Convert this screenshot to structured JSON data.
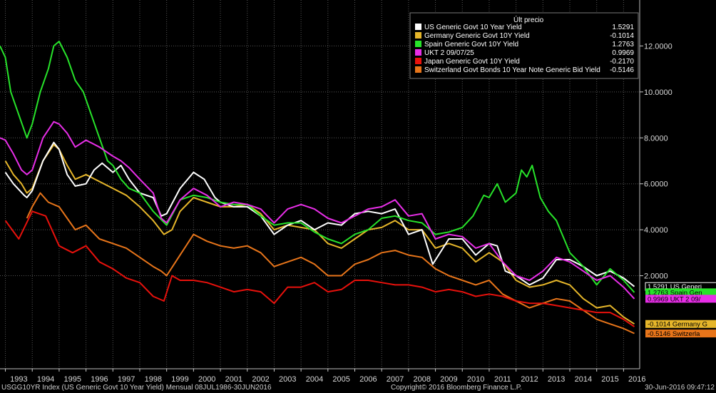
{
  "chart_data": {
    "type": "line",
    "title": "",
    "xlabel": "",
    "ylabel": "",
    "xlim": [
      1992.8,
      2016.6
    ],
    "ylim": [
      -2.05,
      14.0
    ],
    "grid": true,
    "legend_placement": "top-right",
    "legend_header": "Últ precio",
    "y_ticks": [
      {
        "value": 2,
        "label": "2.0000"
      },
      {
        "value": 4,
        "label": "4.0000"
      },
      {
        "value": 6,
        "label": "6.0000"
      },
      {
        "value": 8,
        "label": "8.0000"
      },
      {
        "value": 10,
        "label": "10.0000"
      },
      {
        "value": 12,
        "label": "12.0000"
      }
    ],
    "x_ticks": [
      "1993",
      "1994",
      "1995",
      "1996",
      "1997",
      "1998",
      "1999",
      "2000",
      "2001",
      "2002",
      "2003",
      "2004",
      "2005",
      "2006",
      "2007",
      "2008",
      "2009",
      "2010",
      "2011",
      "2012",
      "2013",
      "2014",
      "2015",
      "2016"
    ],
    "series": [
      {
        "name": "Switzerland Govt Bonds 10 Year Note Generic Bid Yield",
        "last_value": "-0.5146",
        "end_label": "-0.5146  Switzerla",
        "color": "#e8751a",
        "x": [
          1993.0,
          1993.4,
          1993.8,
          1994.0,
          1994.3,
          1994.6,
          1995.0,
          1995.3,
          1995.6,
          1996.0,
          1996.5,
          1997.0,
          1997.5,
          1998.0,
          1998.5,
          1998.8,
          1999.0,
          1999.5,
          2000.0,
          2000.5,
          2001.0,
          2001.5,
          2002.0,
          2002.5,
          2003.0,
          2003.5,
          2004.0,
          2004.5,
          2005.0,
          2005.5,
          2006.0,
          2006.5,
          2007.0,
          2007.5,
          2008.0,
          2008.5,
          2009.0,
          2009.5,
          2010.0,
          2010.5,
          2011.0,
          2011.5,
          2012.0,
          2012.5,
          2013.0,
          2013.5,
          2014.0,
          2014.5,
          2015.0,
          2015.5,
          2016.0,
          2016.4
        ],
        "y": [
          null,
          null,
          4.5,
          5.0,
          5.6,
          5.2,
          5.0,
          4.5,
          4.0,
          4.2,
          3.6,
          3.4,
          3.2,
          2.8,
          2.4,
          2.2,
          2.0,
          2.9,
          3.8,
          3.5,
          3.3,
          3.2,
          3.3,
          3.0,
          2.4,
          2.6,
          2.8,
          2.5,
          2.0,
          2.0,
          2.5,
          2.7,
          3.0,
          3.1,
          2.9,
          2.8,
          2.3,
          2.0,
          1.8,
          1.6,
          1.8,
          1.2,
          0.9,
          0.6,
          0.8,
          1.0,
          0.9,
          0.5,
          0.1,
          -0.1,
          -0.3,
          -0.5146
        ]
      },
      {
        "name": "Japan Generic Govt 10Y Yield",
        "last_value": "-0.2170",
        "end_label": "",
        "color": "#e8110c",
        "x": [
          1993.0,
          1993.5,
          1994.0,
          1994.5,
          1995.0,
          1995.5,
          1996.0,
          1996.5,
          1997.0,
          1997.5,
          1998.0,
          1998.5,
          1998.9,
          1999.2,
          1999.5,
          2000.0,
          2000.5,
          2001.0,
          2001.5,
          2002.0,
          2002.5,
          2003.0,
          2003.5,
          2004.0,
          2004.5,
          2005.0,
          2005.5,
          2006.0,
          2006.5,
          2007.0,
          2007.5,
          2008.0,
          2008.5,
          2009.0,
          2009.5,
          2010.0,
          2010.5,
          2011.0,
          2011.5,
          2012.0,
          2012.5,
          2013.0,
          2013.5,
          2014.0,
          2014.5,
          2015.0,
          2015.5,
          2016.0,
          2016.4
        ],
        "y": [
          4.4,
          3.6,
          4.8,
          4.6,
          3.3,
          3.0,
          3.3,
          2.6,
          2.3,
          1.9,
          1.7,
          1.1,
          0.9,
          2.0,
          1.8,
          1.8,
          1.7,
          1.5,
          1.3,
          1.4,
          1.3,
          0.8,
          1.5,
          1.5,
          1.7,
          1.3,
          1.4,
          1.8,
          1.8,
          1.7,
          1.6,
          1.6,
          1.5,
          1.3,
          1.4,
          1.3,
          1.1,
          1.2,
          1.1,
          0.9,
          0.8,
          0.8,
          0.7,
          0.6,
          0.5,
          0.4,
          0.4,
          0.1,
          -0.217
        ]
      },
      {
        "name": "Germany Generic Govt 10Y Yield",
        "last_value": "-0.1014",
        "end_label": "-0.1014  Germany G",
        "color": "#e6b62a",
        "x": [
          1993.0,
          1993.3,
          1993.6,
          1993.8,
          1994.0,
          1994.4,
          1994.8,
          1995.0,
          1995.3,
          1995.6,
          1996.0,
          1996.5,
          1997.0,
          1997.5,
          1998.0,
          1998.5,
          1998.9,
          1999.2,
          1999.5,
          2000.0,
          2000.5,
          2001.0,
          2001.5,
          2002.0,
          2002.5,
          2003.0,
          2003.5,
          2004.0,
          2004.5,
          2005.0,
          2005.5,
          2006.0,
          2006.5,
          2007.0,
          2007.5,
          2008.0,
          2008.5,
          2009.0,
          2009.5,
          2010.0,
          2010.5,
          2011.0,
          2011.5,
          2012.0,
          2012.5,
          2013.0,
          2013.5,
          2014.0,
          2014.5,
          2015.0,
          2015.5,
          2016.0,
          2016.4
        ],
        "y": [
          7.0,
          6.4,
          6.0,
          5.6,
          5.8,
          7.0,
          7.7,
          7.5,
          6.8,
          6.2,
          6.4,
          6.1,
          5.8,
          5.5,
          5.0,
          4.4,
          3.8,
          4.0,
          4.8,
          5.4,
          5.2,
          5.0,
          5.0,
          5.1,
          4.7,
          4.0,
          4.2,
          4.1,
          4.0,
          3.4,
          3.2,
          3.6,
          4.0,
          4.1,
          4.4,
          4.0,
          4.0,
          3.2,
          3.4,
          3.2,
          2.6,
          3.0,
          2.6,
          1.8,
          1.5,
          1.6,
          1.8,
          1.6,
          1.0,
          0.6,
          0.7,
          0.2,
          -0.1014
        ]
      },
      {
        "name": "US Generic Govt 10 Year Yield",
        "last_value": "1.5291",
        "end_label": "1.5291  US Generi",
        "color": "#ffffff",
        "x": [
          1993.0,
          1993.3,
          1993.7,
          1993.8,
          1994.0,
          1994.4,
          1994.8,
          1995.0,
          1995.3,
          1995.6,
          1996.0,
          1996.3,
          1996.6,
          1997.0,
          1997.3,
          1997.6,
          1998.0,
          1998.5,
          1998.8,
          1999.0,
          1999.5,
          2000.0,
          2000.4,
          2000.8,
          2001.0,
          2001.5,
          2002.0,
          2002.5,
          2003.0,
          2003.5,
          2004.0,
          2004.5,
          2005.0,
          2005.5,
          2006.0,
          2006.5,
          2007.0,
          2007.5,
          2008.0,
          2008.5,
          2008.9,
          2009.5,
          2010.0,
          2010.5,
          2011.0,
          2011.3,
          2011.6,
          2012.0,
          2012.5,
          2013.0,
          2013.5,
          2014.0,
          2014.5,
          2015.0,
          2015.5,
          2016.0,
          2016.4
        ],
        "y": [
          6.5,
          6.0,
          5.5,
          5.4,
          5.7,
          7.0,
          7.8,
          7.5,
          6.4,
          5.9,
          6.0,
          6.6,
          6.9,
          6.5,
          6.8,
          6.2,
          5.6,
          5.4,
          4.6,
          4.7,
          5.8,
          6.5,
          6.2,
          5.4,
          5.2,
          5.0,
          5.0,
          4.6,
          3.8,
          4.2,
          4.4,
          4.0,
          4.3,
          4.2,
          4.7,
          4.8,
          4.7,
          4.9,
          3.8,
          4.0,
          2.5,
          3.6,
          3.6,
          2.9,
          3.4,
          3.3,
          2.2,
          2.0,
          1.6,
          1.9,
          2.7,
          2.7,
          2.4,
          2.0,
          2.2,
          1.9,
          1.5291
        ]
      },
      {
        "name": "Spain Generic Govt 10Y Yield",
        "last_value": "1.2763",
        "end_label": "1.2763  Spain Gen",
        "color": "#27e32a",
        "x": [
          1992.8,
          1993.0,
          1993.2,
          1993.5,
          1993.8,
          1994.0,
          1994.3,
          1994.6,
          1994.8,
          1995.0,
          1995.3,
          1995.6,
          1995.9,
          1996.2,
          1996.5,
          1996.8,
          1997.0,
          1997.3,
          1997.6,
          1998.0,
          1998.5,
          1999.0,
          1999.5,
          2000.0,
          2000.5,
          2001.0,
          2001.5,
          2002.0,
          2002.5,
          2003.0,
          2003.5,
          2004.0,
          2004.5,
          2005.0,
          2005.5,
          2006.0,
          2006.5,
          2007.0,
          2007.5,
          2008.0,
          2008.5,
          2009.0,
          2009.5,
          2010.0,
          2010.4,
          2010.8,
          2011.0,
          2011.3,
          2011.6,
          2012.0,
          2012.2,
          2012.4,
          2012.6,
          2012.9,
          2013.2,
          2013.5,
          2014.0,
          2014.5,
          2015.0,
          2015.5,
          2016.0,
          2016.4
        ],
        "y": [
          12.0,
          11.5,
          10.0,
          9.0,
          8.0,
          8.6,
          10.0,
          11.0,
          12.0,
          12.2,
          11.5,
          10.5,
          10.0,
          9.0,
          8.0,
          7.0,
          6.8,
          6.2,
          5.8,
          5.6,
          4.8,
          4.2,
          5.3,
          5.5,
          5.4,
          5.2,
          5.1,
          5.1,
          4.6,
          4.2,
          4.3,
          4.3,
          3.9,
          3.6,
          3.4,
          3.8,
          4.0,
          4.5,
          4.6,
          4.4,
          4.3,
          3.8,
          3.9,
          4.1,
          4.6,
          5.5,
          5.4,
          6.0,
          5.2,
          5.6,
          6.6,
          6.3,
          6.8,
          5.4,
          4.8,
          4.4,
          3.0,
          2.4,
          1.6,
          2.3,
          1.8,
          1.2763
        ]
      },
      {
        "name": "UKT 2 09/07/25",
        "last_value": "0.9969",
        "end_label": "0.9969  UKT 2 09/",
        "color": "#e82ee8",
        "x": [
          1992.8,
          1993.0,
          1993.3,
          1993.6,
          1993.8,
          1994.0,
          1994.4,
          1994.8,
          1995.0,
          1995.3,
          1995.6,
          1996.0,
          1996.5,
          1997.0,
          1997.3,
          1997.6,
          1998.0,
          1998.5,
          1998.8,
          1999.0,
          1999.5,
          2000.0,
          2000.5,
          2001.0,
          2001.5,
          2002.0,
          2002.5,
          2003.0,
          2003.5,
          2004.0,
          2004.5,
          2005.0,
          2005.5,
          2006.0,
          2006.5,
          2007.0,
          2007.5,
          2008.0,
          2008.5,
          2009.0,
          2009.5,
          2010.0,
          2010.5,
          2011.0,
          2011.5,
          2012.0,
          2012.5,
          2013.0,
          2013.5,
          2014.0,
          2014.5,
          2015.0,
          2015.5,
          2016.0,
          2016.4
        ],
        "y": [
          8.0,
          7.9,
          7.3,
          6.6,
          6.4,
          6.6,
          8.0,
          8.7,
          8.6,
          8.2,
          7.6,
          7.9,
          7.6,
          7.2,
          7.0,
          6.7,
          6.2,
          5.6,
          4.5,
          4.3,
          5.3,
          5.8,
          5.5,
          5.0,
          5.2,
          5.1,
          4.9,
          4.3,
          4.9,
          5.1,
          4.9,
          4.5,
          4.3,
          4.6,
          4.9,
          5.0,
          5.3,
          4.6,
          4.7,
          3.6,
          3.8,
          3.7,
          3.2,
          3.4,
          2.6,
          2.0,
          1.8,
          2.2,
          2.8,
          2.6,
          2.2,
          1.8,
          2.0,
          1.5,
          0.9969
        ]
      }
    ]
  },
  "footer": {
    "left": "USGG10YR Index (US Generic Govt 10 Year Yield)  Mensual 08JUL1986-30JUN2016",
    "center": "Copyright© 2016 Bloomberg Finance L.P.",
    "right": "30-Jun-2016 09:47:12"
  }
}
